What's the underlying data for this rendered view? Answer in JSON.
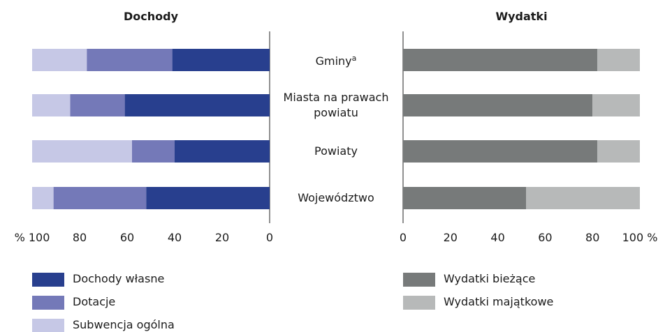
{
  "chart_data": [
    {
      "type": "bar",
      "orientation": "horizontal",
      "stacked": true,
      "title": "Dochody",
      "categories": [
        "Gminy",
        "Miasta na prawach powiatu",
        "Powiaty",
        "Województwo"
      ],
      "category_notes": [
        "a",
        null,
        null,
        null
      ],
      "series": [
        {
          "name": "Dochody własne",
          "color": "#283f8e",
          "values": [
            41,
            61,
            40,
            52
          ]
        },
        {
          "name": "Dotacje",
          "color": "#7479b8",
          "values": [
            36,
            23,
            18,
            39
          ]
        },
        {
          "name": "Subwencja ogólna",
          "color": "#c6c8e6",
          "values": [
            23,
            16,
            42,
            9
          ]
        }
      ],
      "xlim": [
        100,
        0
      ],
      "xticks": [
        {
          "value": 100,
          "label": "% 100"
        },
        80,
        60,
        40,
        20,
        0
      ]
    },
    {
      "type": "bar",
      "orientation": "horizontal",
      "stacked": true,
      "title": "Wydatki",
      "series": [
        {
          "name": "Wydatki bieżące",
          "color": "#777a7a",
          "values": [
            82,
            80,
            82,
            52
          ]
        },
        {
          "name": "Wydatki majątkowe",
          "color": "#b7b9b9",
          "values": [
            18,
            20,
            18,
            48
          ]
        }
      ],
      "xlim": [
        0,
        100
      ],
      "xticks": [
        0,
        20,
        40,
        60,
        80,
        {
          "value": 100,
          "label": "100 %"
        }
      ]
    }
  ]
}
